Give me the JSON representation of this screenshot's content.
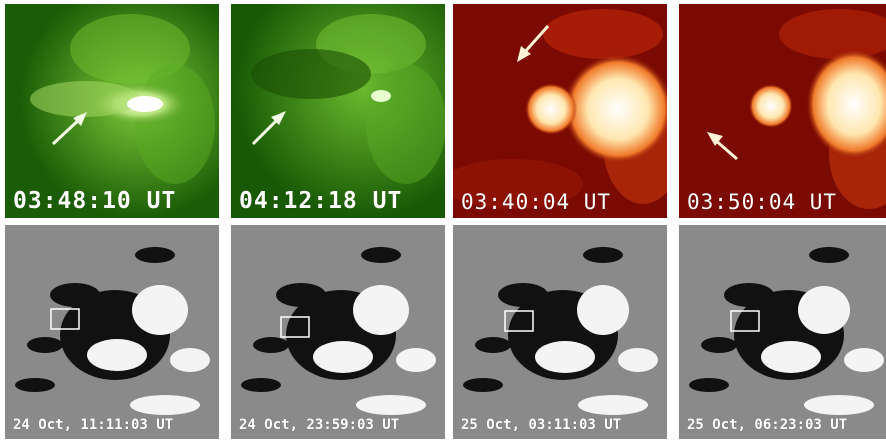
{
  "panels_top": [
    {
      "label": "03:48:10 UT",
      "channel": "euv-green"
    },
    {
      "label": "04:12:18 UT",
      "channel": "euv-green"
    },
    {
      "label": "03:40:04 UT",
      "channel": "euv-red"
    },
    {
      "label": "03:50:04 UT",
      "channel": "euv-red"
    }
  ],
  "panels_bottom": [
    {
      "label": "24 Oct, 11:11:03 UT"
    },
    {
      "label": "24 Oct, 23:59:03 UT"
    },
    {
      "label": "25 Oct, 03:11:03 UT"
    },
    {
      "label": "25 Oct, 06:23:03 UT"
    }
  ],
  "colors": {
    "green_bg": "#1f6b07",
    "green_bright": "#d8f6a8",
    "red_bg": "#7a0a02",
    "red_bright": "#fff2cf",
    "mag_gray": "#8a8a8a"
  }
}
